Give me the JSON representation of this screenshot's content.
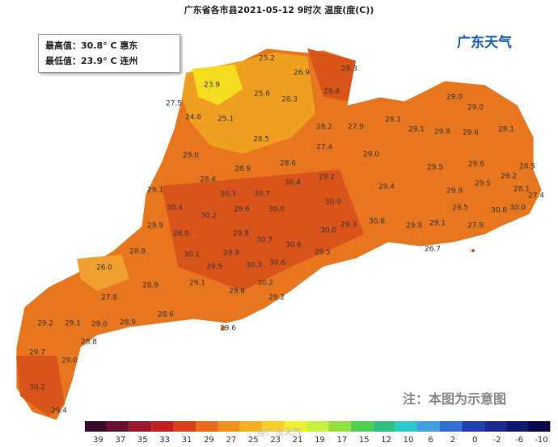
{
  "title": "广东省各市县2021-05-12 9时次 温度(度(C))",
  "info": {
    "max": "最高值：30.8° C 惠东",
    "min": "最低值：23.9° C 连州"
  },
  "logo": "广东天气",
  "note": "注：本图为示意图",
  "watermark": "@广东天气",
  "legend": [
    "39",
    "37",
    "35",
    "33",
    "31",
    "29",
    "27",
    "25",
    "23",
    "21",
    "19",
    "17",
    "15",
    "12",
    "10",
    "6",
    "2",
    "0",
    "-2",
    "-6",
    "-10"
  ],
  "stations": [
    "25.2",
    "26.9",
    "29.3",
    "23.9",
    "29.4",
    "27.5",
    "25.6",
    "28.3",
    "24.6",
    "25.1",
    "28.2",
    "27.9",
    "28.1",
    "29.0",
    "29.0",
    "28.5",
    "29.1",
    "29.8",
    "29.6",
    "29.1",
    "27.4",
    "29.0",
    "29.0",
    "28.6",
    "28.9",
    "29.5",
    "29.6",
    "28.5",
    "28.4",
    "29.2",
    "29.2",
    "29.1",
    "30.3",
    "30.7",
    "30.4",
    "29.4",
    "29.9",
    "29.5",
    "28.1",
    "27.4",
    "30.4",
    "30.2",
    "29.6",
    "30.0",
    "30.0",
    "29.5",
    "30.8",
    "30.0",
    "29.9",
    "29.3",
    "30.8",
    "29.9",
    "29.1",
    "27.9",
    "28.9",
    "29.8",
    "30.0",
    "30.7",
    "30.6",
    "28.9",
    "29.5",
    "26.7",
    "30.1",
    "29.9",
    "30.3",
    "30.6",
    "26.0",
    "29.5",
    "29.1",
    "30.2",
    "28.9",
    "29.8",
    "29.2",
    "27.8",
    "28.6",
    "29.2",
    "29.1",
    "29.0",
    "28.9",
    "29.6",
    "28.8",
    "29.7",
    "29.0",
    "30.2",
    "29.4"
  ]
}
